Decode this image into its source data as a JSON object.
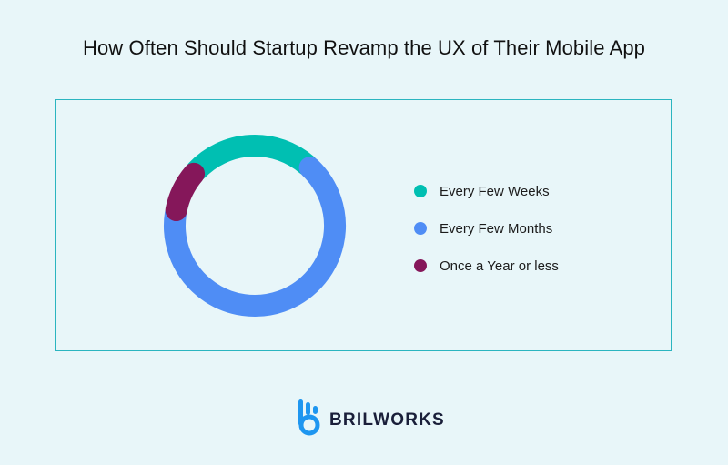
{
  "title": "How Often Should Startup Revamp the UX of Their Mobile App",
  "chart_data": {
    "type": "pie",
    "style": "donut",
    "title": "How Often Should Startup Revamp the UX of Their Mobile App",
    "categories": [
      "Every Few Weeks",
      "Every Few Months",
      "Once a Year or less"
    ],
    "values": [
      25,
      66,
      9
    ],
    "colors": [
      "#00bfb2",
      "#4f8df5",
      "#85175a"
    ],
    "legend_position": "right"
  },
  "brand": {
    "name": "BRILWORKS",
    "logo_color": "#1e96f0"
  }
}
